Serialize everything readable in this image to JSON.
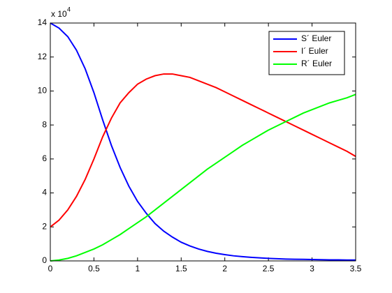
{
  "chart_data": {
    "type": "line",
    "y_multiplier": {
      "text": "x 10",
      "exponent": "4"
    },
    "x": [
      0,
      0.1,
      0.2,
      0.3,
      0.4,
      0.5,
      0.6,
      0.7,
      0.8,
      0.9,
      1.0,
      1.1,
      1.2,
      1.3,
      1.4,
      1.5,
      1.6,
      1.7,
      1.8,
      1.9,
      2.0,
      2.1,
      2.2,
      2.3,
      2.4,
      2.5,
      2.6,
      2.7,
      2.8,
      2.9,
      3.0,
      3.1,
      3.2,
      3.3,
      3.4,
      3.5
    ],
    "series": [
      {
        "name": "S´ Euler",
        "color": "#0000ff",
        "values": [
          14,
          13.7,
          13.2,
          12.4,
          11.3,
          9.9,
          8.3,
          6.8,
          5.5,
          4.4,
          3.5,
          2.8,
          2.2,
          1.75,
          1.4,
          1.1,
          0.88,
          0.7,
          0.56,
          0.45,
          0.37,
          0.3,
          0.25,
          0.21,
          0.18,
          0.15,
          0.13,
          0.11,
          0.1,
          0.09,
          0.08,
          0.07,
          0.06,
          0.06,
          0.05,
          0.05
        ]
      },
      {
        "name": "I´ Euler",
        "color": "#ff0000",
        "values": [
          2,
          2.4,
          3.0,
          3.8,
          4.8,
          6.0,
          7.3,
          8.4,
          9.3,
          9.9,
          10.4,
          10.7,
          10.9,
          11.0,
          11.0,
          10.9,
          10.8,
          10.6,
          10.4,
          10.2,
          9.95,
          9.7,
          9.45,
          9.2,
          8.95,
          8.7,
          8.45,
          8.2,
          7.95,
          7.7,
          7.45,
          7.2,
          6.95,
          6.7,
          6.45,
          6.15
        ]
      },
      {
        "name": "R´ Euler",
        "color": "#00ff00",
        "values": [
          0,
          0.05,
          0.15,
          0.3,
          0.5,
          0.7,
          0.95,
          1.25,
          1.55,
          1.9,
          2.25,
          2.6,
          3.0,
          3.4,
          3.8,
          4.2,
          4.6,
          5.0,
          5.4,
          5.75,
          6.1,
          6.45,
          6.8,
          7.1,
          7.4,
          7.7,
          7.95,
          8.2,
          8.45,
          8.7,
          8.9,
          9.1,
          9.3,
          9.45,
          9.6,
          9.8
        ]
      }
    ],
    "xlim": [
      0,
      3.5
    ],
    "xticks": [
      0,
      0.5,
      1,
      1.5,
      2,
      2.5,
      3,
      3.5
    ],
    "ylim": [
      0,
      14
    ],
    "yticks": [
      0,
      2,
      4,
      6,
      8,
      10,
      12,
      14
    ],
    "grid": false,
    "legend": "upper right"
  }
}
